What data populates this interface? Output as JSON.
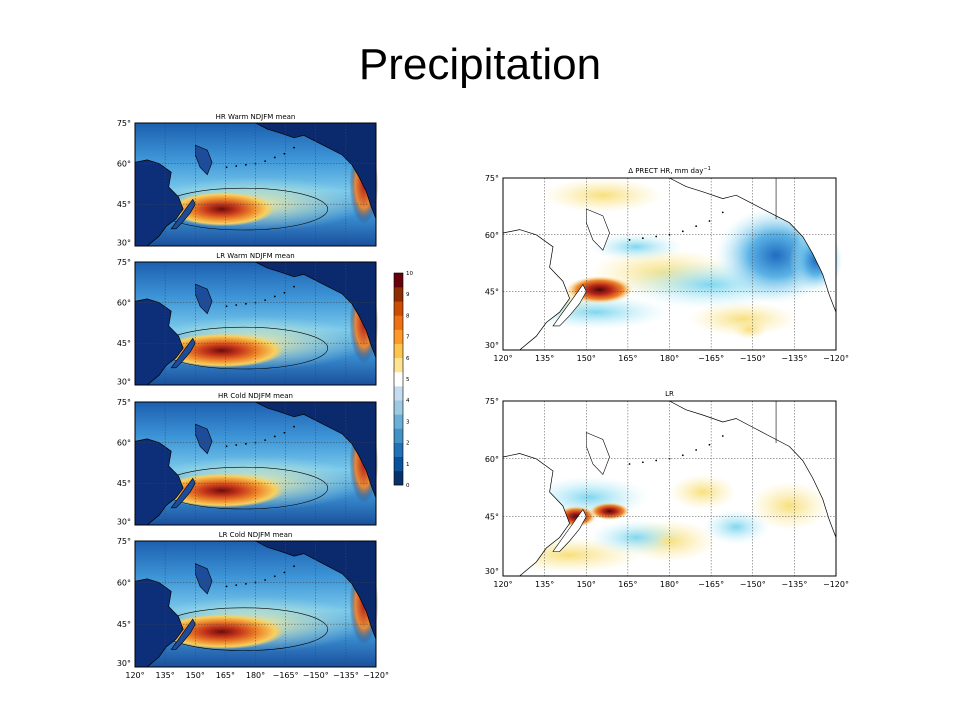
{
  "slide": {
    "title": "Precipitation"
  },
  "panels": [
    {
      "title": "HR Warm NDJFM mean",
      "kind": "mean"
    },
    {
      "title": "LR Warm NDJFM mean",
      "kind": "mean"
    },
    {
      "title": "HR Cold NDJFM mean",
      "kind": "mean"
    },
    {
      "title": "LR Cold NDJFM mean",
      "kind": "mean"
    },
    {
      "title": "Δ PRECT HR, mm day",
      "unit_superscript": "−1",
      "kind": "diff-hr"
    },
    {
      "title": "LR",
      "kind": "diff-lr"
    }
  ],
  "axes": {
    "lat_ticks": [
      "75°",
      "60°",
      "45°",
      "30°"
    ],
    "lon_ticks": [
      "120°",
      "135°",
      "150°",
      "165°",
      "180°",
      "−165°",
      "−150°",
      "−135°",
      "−120°"
    ]
  },
  "colorbar": {
    "ticks": [
      "10",
      "9",
      "8",
      "7",
      "6",
      "5",
      "4",
      "3",
      "2",
      "1",
      "0"
    ],
    "colors": [
      "#08306b",
      "#08519c",
      "#2171b5",
      "#4292c6",
      "#6baed6",
      "#9ecae1",
      "#c6dbef",
      "#ffffff",
      "#fee391",
      "#fec44f",
      "#fe9929",
      "#ec7014",
      "#cc4c02",
      "#8c2d04",
      "#67000d"
    ]
  }
}
